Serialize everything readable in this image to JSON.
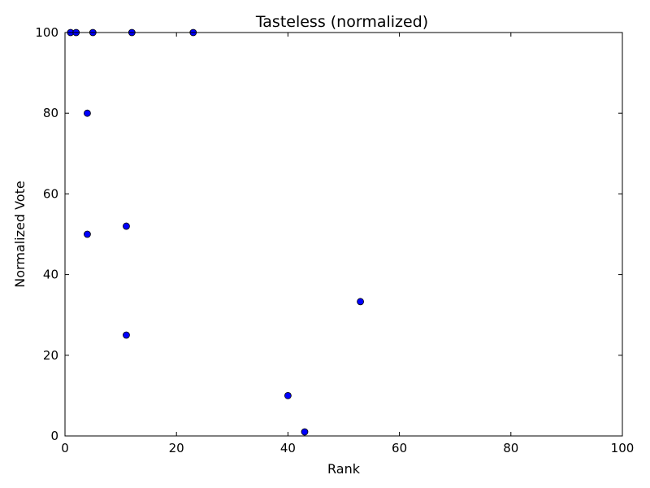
{
  "chart_data": {
    "type": "scatter",
    "title": "Tasteless (normalized)",
    "xlabel": "Rank",
    "ylabel": "Normalized Vote",
    "xlim": [
      0,
      100
    ],
    "ylim": [
      0,
      100
    ],
    "xticks": [
      "0",
      "20",
      "40",
      "60",
      "80",
      "100"
    ],
    "yticks": [
      "0",
      "20",
      "40",
      "60",
      "80",
      "100"
    ],
    "grid": false,
    "legend": "none",
    "marker_color": "#0000ff",
    "marker_edge_color": "#000000",
    "points": [
      {
        "x": 1,
        "y": 100
      },
      {
        "x": 2,
        "y": 100
      },
      {
        "x": 5,
        "y": 100
      },
      {
        "x": 12,
        "y": 100
      },
      {
        "x": 23,
        "y": 100
      },
      {
        "x": 4,
        "y": 80
      },
      {
        "x": 4,
        "y": 50
      },
      {
        "x": 11,
        "y": 52
      },
      {
        "x": 11,
        "y": 25
      },
      {
        "x": 53,
        "y": 33.3
      },
      {
        "x": 40,
        "y": 10
      },
      {
        "x": 43,
        "y": 1
      }
    ]
  }
}
